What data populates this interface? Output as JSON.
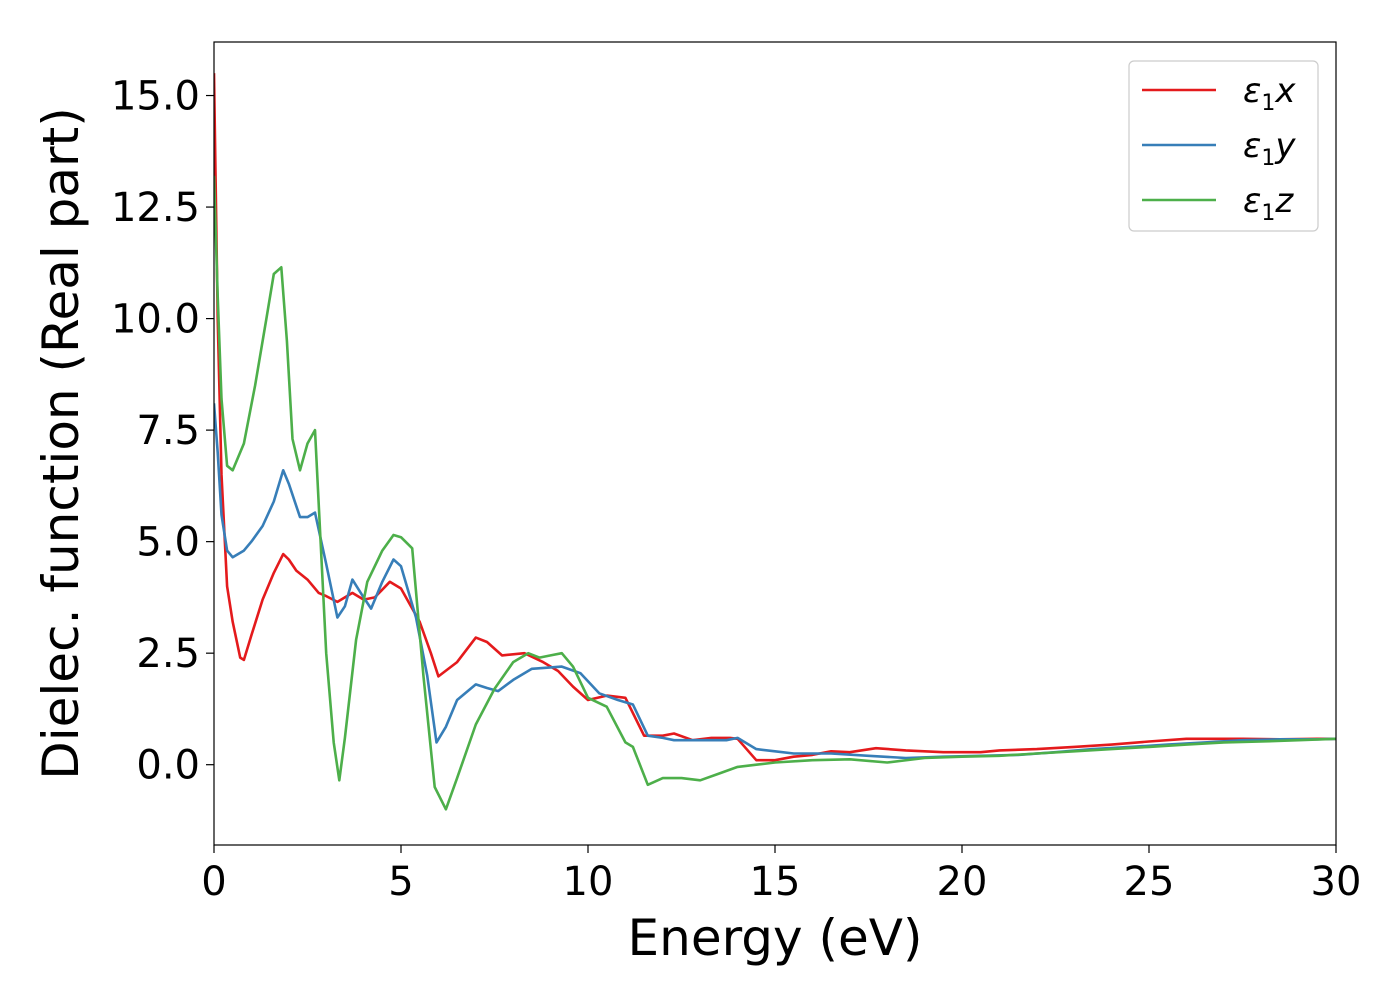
{
  "chart_data": {
    "type": "line",
    "xlabel": "Energy (eV)",
    "ylabel": "Dielec. function (Real part)",
    "xlim": [
      0,
      30
    ],
    "ylim": [
      -1.8,
      16.2
    ],
    "xticks": [
      0,
      5,
      10,
      15,
      20,
      25,
      30
    ],
    "xtick_labels": [
      "0",
      "5",
      "10",
      "15",
      "20",
      "25",
      "30"
    ],
    "yticks": [
      0.0,
      2.5,
      5.0,
      7.5,
      10.0,
      12.5,
      15.0
    ],
    "ytick_labels": [
      "0.0",
      "2.5",
      "5.0",
      "7.5",
      "10.0",
      "12.5",
      "15.0"
    ],
    "grid": false,
    "legend_position": "top-right",
    "series": [
      {
        "name": "ε1x",
        "legend_base": "ε",
        "legend_sub": "1",
        "legend_var": "x",
        "color": "#e41a1c",
        "x": [
          0,
          0.1,
          0.2,
          0.35,
          0.5,
          0.7,
          0.8,
          1.0,
          1.3,
          1.6,
          1.85,
          2.0,
          2.2,
          2.5,
          2.8,
          3.0,
          3.3,
          3.7,
          4.0,
          4.3,
          4.7,
          5.0,
          5.5,
          5.8,
          6.0,
          6.5,
          7.0,
          7.3,
          7.7,
          8.3,
          8.8,
          9.2,
          9.6,
          10.0,
          10.5,
          11.0,
          11.5,
          12.0,
          12.3,
          12.8,
          13.3,
          13.8,
          14.0,
          14.5,
          15.0,
          15.5,
          16.0,
          16.5,
          17.0,
          17.7,
          18.5,
          19.5,
          20.5,
          21.0,
          22.0,
          23.0,
          24.0,
          25.0,
          26.0,
          26.5,
          27.5,
          28.5,
          29.5,
          30.0
        ],
        "y": [
          15.5,
          10.0,
          6.5,
          4.0,
          3.2,
          2.4,
          2.35,
          2.9,
          3.7,
          4.3,
          4.72,
          4.6,
          4.35,
          4.15,
          3.85,
          3.78,
          3.65,
          3.85,
          3.7,
          3.75,
          4.1,
          3.95,
          3.2,
          2.5,
          1.98,
          2.3,
          2.85,
          2.75,
          2.45,
          2.5,
          2.3,
          2.1,
          1.75,
          1.45,
          1.55,
          1.5,
          0.65,
          0.65,
          0.7,
          0.55,
          0.6,
          0.6,
          0.58,
          0.1,
          0.1,
          0.18,
          0.22,
          0.3,
          0.28,
          0.37,
          0.32,
          0.28,
          0.28,
          0.32,
          0.35,
          0.4,
          0.45,
          0.52,
          0.58,
          0.58,
          0.58,
          0.57,
          0.58,
          0.58
        ]
      },
      {
        "name": "ε1y",
        "legend_base": "ε",
        "legend_sub": "1",
        "legend_var": "y",
        "color": "#377eb8",
        "x": [
          0,
          0.1,
          0.2,
          0.35,
          0.5,
          0.8,
          1.0,
          1.3,
          1.6,
          1.85,
          2.0,
          2.3,
          2.5,
          2.7,
          3.0,
          3.3,
          3.5,
          3.7,
          4.0,
          4.2,
          4.5,
          4.8,
          5.0,
          5.4,
          5.7,
          5.95,
          6.2,
          6.5,
          7.0,
          7.3,
          7.6,
          8.0,
          8.5,
          9.0,
          9.3,
          9.8,
          10.3,
          10.8,
          11.2,
          11.6,
          12.0,
          12.3,
          12.8,
          13.3,
          13.7,
          14.0,
          14.5,
          15.0,
          15.5,
          16.5,
          17.5,
          18.5,
          19.5,
          20.5,
          21.5,
          22.5,
          23.5,
          24.5,
          25.5,
          26.5,
          27.5,
          28.5,
          29.5,
          30.0
        ],
        "y": [
          8.1,
          7.0,
          5.6,
          4.8,
          4.65,
          4.8,
          5.0,
          5.35,
          5.9,
          6.6,
          6.3,
          5.55,
          5.55,
          5.65,
          4.5,
          3.3,
          3.55,
          4.15,
          3.75,
          3.5,
          4.1,
          4.6,
          4.45,
          3.3,
          2.0,
          0.5,
          0.85,
          1.45,
          1.8,
          1.72,
          1.65,
          1.9,
          2.15,
          2.18,
          2.2,
          2.05,
          1.6,
          1.45,
          1.35,
          0.65,
          0.6,
          0.55,
          0.55,
          0.55,
          0.55,
          0.6,
          0.35,
          0.3,
          0.25,
          0.25,
          0.2,
          0.15,
          0.18,
          0.2,
          0.22,
          0.28,
          0.35,
          0.4,
          0.45,
          0.5,
          0.55,
          0.57,
          0.57,
          0.58
        ]
      },
      {
        "name": "ε1z",
        "legend_base": "ε",
        "legend_sub": "1",
        "legend_var": "z",
        "color": "#4daf4a",
        "x": [
          0,
          0.1,
          0.2,
          0.35,
          0.5,
          0.8,
          1.1,
          1.4,
          1.6,
          1.8,
          1.95,
          2.1,
          2.3,
          2.5,
          2.7,
          2.85,
          3.0,
          3.2,
          3.35,
          3.5,
          3.8,
          4.1,
          4.5,
          4.8,
          5.0,
          5.3,
          5.6,
          5.9,
          6.2,
          6.5,
          7.0,
          7.5,
          8.0,
          8.4,
          8.7,
          9.0,
          9.3,
          9.6,
          10.0,
          10.5,
          11.0,
          11.2,
          11.6,
          12.0,
          12.5,
          13.0,
          13.5,
          14.0,
          14.5,
          15.0,
          16.0,
          17.0,
          18.0,
          19.0,
          20.0,
          21.0,
          22.0,
          23.0,
          24.0,
          25.0,
          26.0,
          27.0,
          28.0,
          29.0,
          30.0
        ],
        "y": [
          13.2,
          10.5,
          8.2,
          6.7,
          6.6,
          7.2,
          8.5,
          10.0,
          11.0,
          11.15,
          9.5,
          7.3,
          6.6,
          7.2,
          7.5,
          5.0,
          2.5,
          0.5,
          -0.35,
          0.6,
          2.8,
          4.1,
          4.8,
          5.15,
          5.1,
          4.85,
          2.0,
          -0.5,
          -1.0,
          -0.3,
          0.9,
          1.7,
          2.3,
          2.5,
          2.4,
          2.45,
          2.5,
          2.2,
          1.5,
          1.3,
          0.5,
          0.4,
          -0.45,
          -0.3,
          -0.3,
          -0.35,
          -0.2,
          -0.05,
          0.0,
          0.05,
          0.1,
          0.12,
          0.05,
          0.15,
          0.18,
          0.2,
          0.25,
          0.3,
          0.35,
          0.4,
          0.45,
          0.5,
          0.52,
          0.55,
          0.58
        ]
      }
    ]
  }
}
